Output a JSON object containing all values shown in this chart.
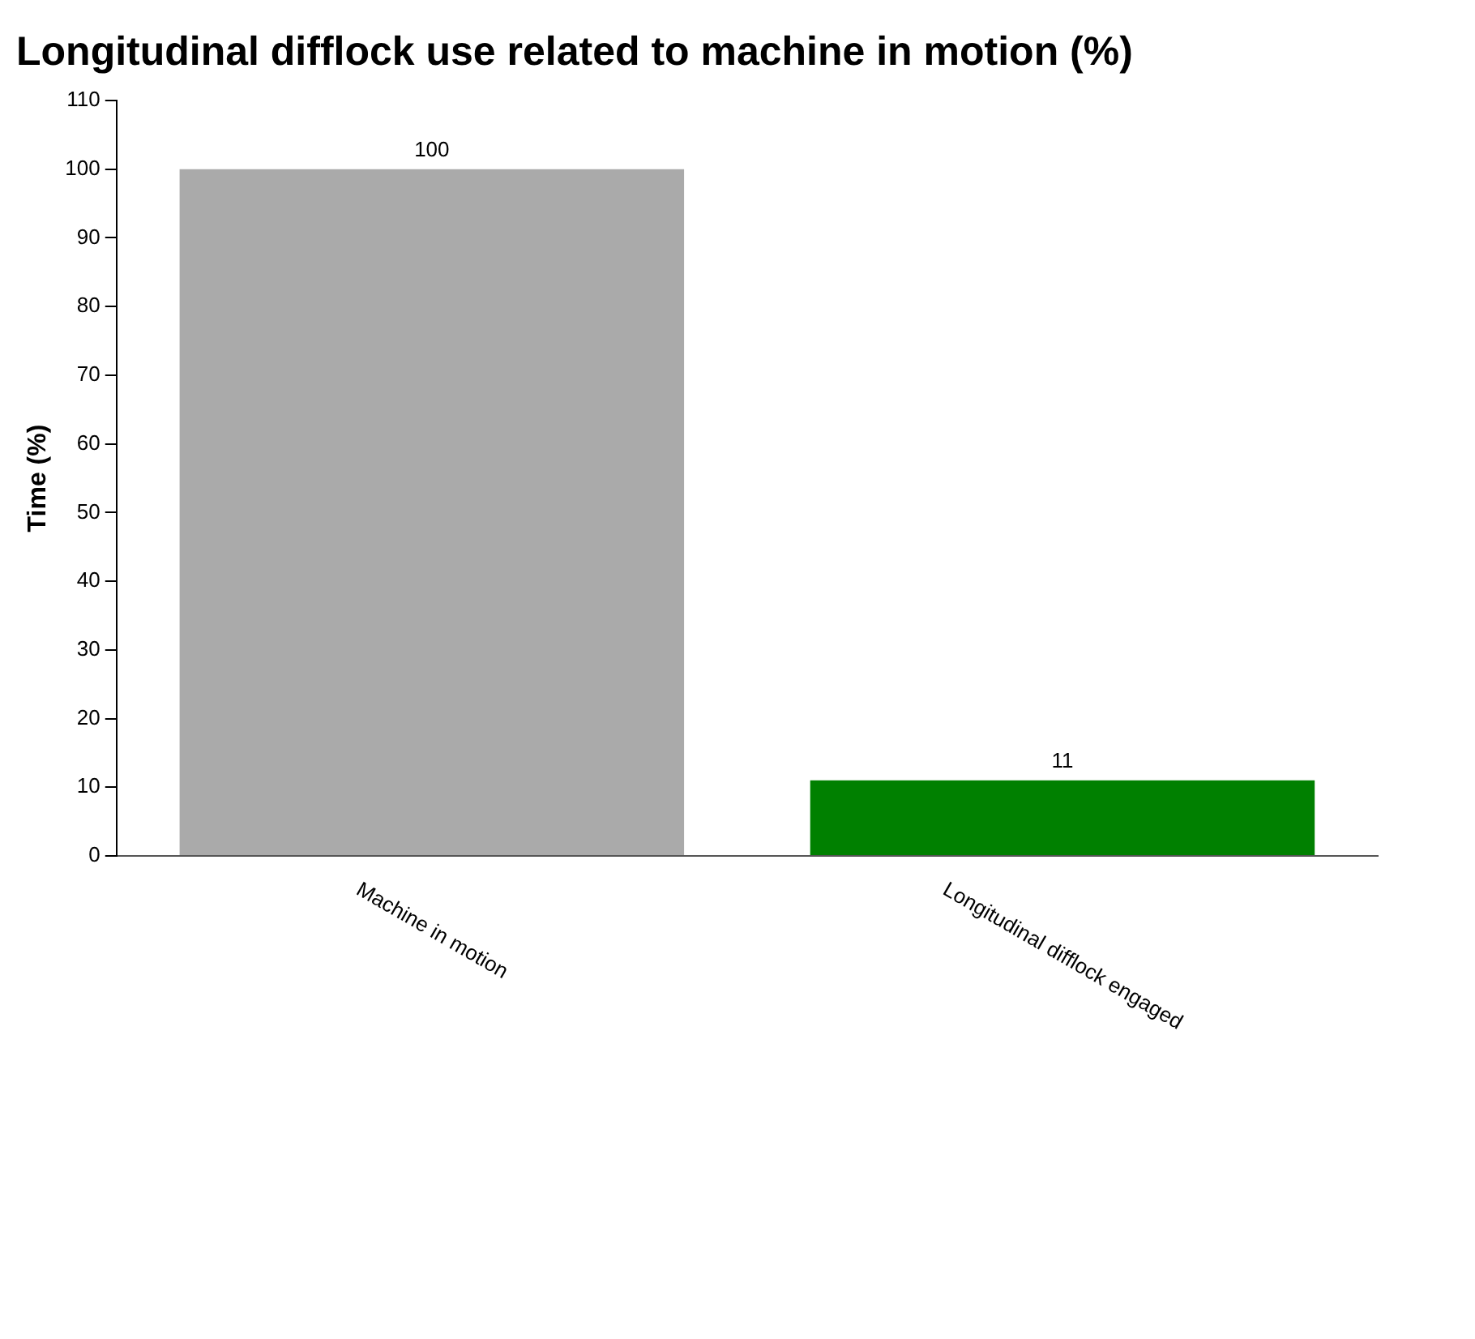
{
  "chart_data": {
    "type": "bar",
    "title": "Longitudinal difflock use related to machine in motion (%)",
    "ylabel": "Time (%)",
    "categories": [
      "Machine in motion",
      "Longitudinal difflock engaged"
    ],
    "values": [
      100,
      11
    ],
    "colors": [
      "#aaaaaa",
      "#008000"
    ],
    "ylim": [
      0,
      110
    ],
    "yticks": [
      0,
      10,
      20,
      30,
      40,
      50,
      60,
      70,
      80,
      90,
      100,
      110
    ],
    "data_labels": true,
    "grid": false,
    "legend": false
  }
}
